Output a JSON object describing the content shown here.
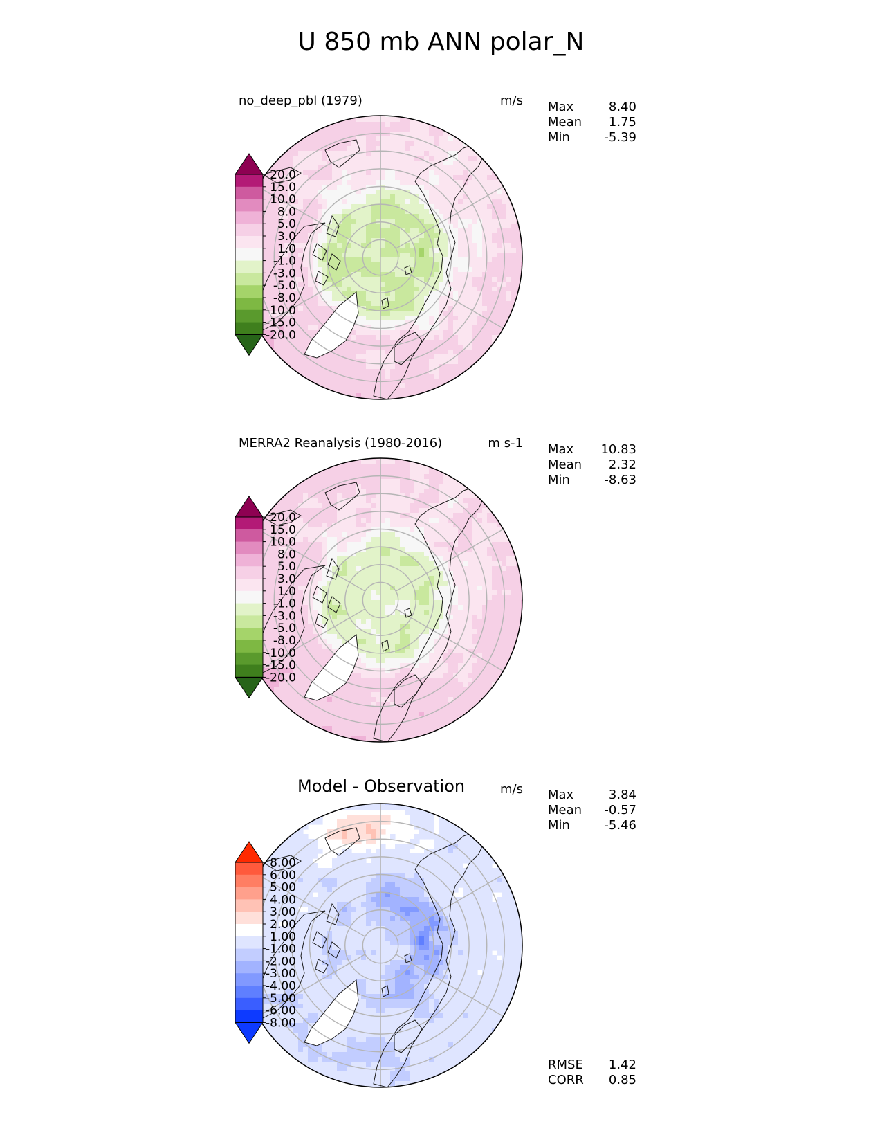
{
  "title": "U 850 mb ANN polar_N",
  "colors": {
    "pink_levels": [
      "#276419",
      "#3f7f1d",
      "#5a9a2d",
      "#7eb843",
      "#a5d46a",
      "#c9e89e",
      "#e2f3c9",
      "#f7f7f7",
      "#fbe5f0",
      "#f6d0e6",
      "#efb2d7",
      "#e28bbf",
      "#ce5a9f",
      "#b31a76",
      "#8e0152"
    ],
    "diff_levels": [
      "#0d3aff",
      "#3a5eff",
      "#5f7fff",
      "#8199ff",
      "#a2b3ff",
      "#c2cdff",
      "#dfe5ff",
      "#ffffff",
      "#ffe0da",
      "#ffc2b5",
      "#ffa08c",
      "#ff7e63",
      "#ff5a3c",
      "#ff2a00"
    ],
    "coast": "#1a1a1a",
    "grid": "#b5b5b5"
  },
  "chart_data": [
    {
      "type": "heatmap",
      "projection": "north-polar-stereographic",
      "left_title": "no_deep_pbl (1979)",
      "units": "m/s",
      "stats": [
        {
          "label": "Max",
          "value": "8.40"
        },
        {
          "label": "Mean",
          "value": "1.75"
        },
        {
          "label": "Min",
          "value": "-5.39"
        }
      ],
      "colorbar": {
        "ticks": [
          "20.0",
          "15.0",
          "10.0",
          "8.0",
          "5.0",
          "3.0",
          "1.0",
          "-1.0",
          "-3.0",
          "-5.0",
          "-8.0",
          "-10.0",
          "-15.0",
          "-20.0"
        ],
        "levels": [
          -20,
          -15,
          -10,
          -8,
          -5,
          -3,
          -1,
          1,
          3,
          5,
          8,
          10,
          15,
          20
        ],
        "extend": "both",
        "palette": "pink"
      },
      "field": {
        "polar": 0.0,
        "mid": 4.0,
        "edge": 6.0,
        "green_band": -1.5
      }
    },
    {
      "type": "heatmap",
      "projection": "north-polar-stereographic",
      "left_title": "MERRA2 Reanalysis (1980-2016)",
      "units": "m s-1",
      "stats": [
        {
          "label": "Max",
          "value": "10.83"
        },
        {
          "label": "Mean",
          "value": "2.32"
        },
        {
          "label": "Min",
          "value": "-8.63"
        }
      ],
      "colorbar": {
        "ticks": [
          "20.0",
          "15.0",
          "10.0",
          "8.0",
          "5.0",
          "3.0",
          "1.0",
          "-1.0",
          "-3.0",
          "-5.0",
          "-8.0",
          "-10.0",
          "-15.0",
          "-20.0"
        ],
        "levels": [
          -20,
          -15,
          -10,
          -8,
          -5,
          -3,
          -1,
          1,
          3,
          5,
          8,
          10,
          15,
          20
        ],
        "extend": "both",
        "palette": "pink"
      },
      "field": {
        "polar": 1.5,
        "mid": 4.5,
        "edge": 6.5,
        "green_band": -0.5
      }
    },
    {
      "type": "heatmap",
      "projection": "north-polar-stereographic",
      "left_title": "Model - Observation",
      "units": "m/s",
      "stats": [
        {
          "label": "Max",
          "value": "3.84"
        },
        {
          "label": "Mean",
          "value": "-0.57"
        },
        {
          "label": "Min",
          "value": "-5.46"
        }
      ],
      "colorbar": {
        "ticks": [
          "8.00",
          "6.00",
          "5.00",
          "4.00",
          "3.00",
          "2.00",
          "1.00",
          "-1.00",
          "-2.00",
          "-3.00",
          "-4.00",
          "-5.00",
          "-6.00",
          "-8.00"
        ],
        "levels": [
          -8,
          -6,
          -5,
          -4,
          -3,
          -2,
          -1,
          1,
          2,
          3,
          4,
          5,
          6,
          8
        ],
        "extend": "both",
        "palette": "diff"
      },
      "extra_stats": [
        {
          "label": "RMSE",
          "value": "1.42"
        },
        {
          "label": "CORR",
          "value": "0.85"
        }
      ]
    }
  ]
}
